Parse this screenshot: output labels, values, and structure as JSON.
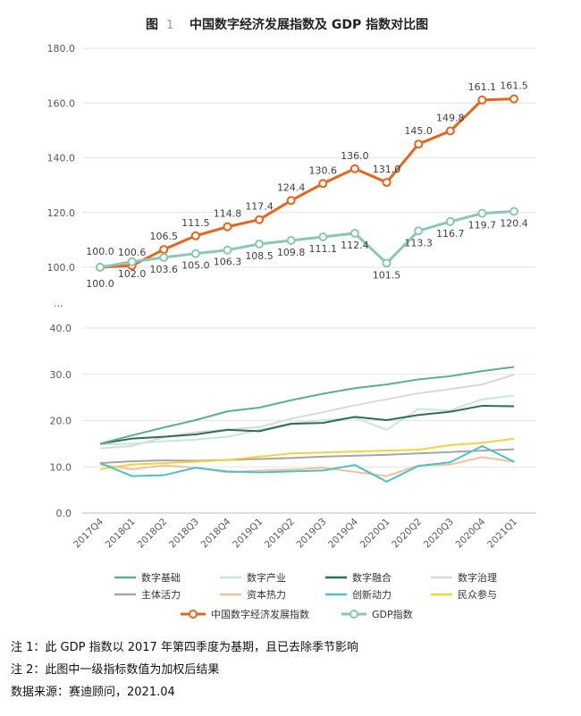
{
  "figure": {
    "number_label": "图",
    "number": "1",
    "title": "中国数字经济发展指数及 GDP 指数对比图"
  },
  "chart_data": [
    {
      "type": "line",
      "categories": [
        "2017Q4",
        "2018Q1",
        "2018Q2",
        "2018Q3",
        "2018Q4",
        "2019Q1",
        "2019Q2",
        "2019Q3",
        "2019Q4",
        "2020Q1",
        "2020Q2",
        "2020Q3",
        "2020Q4",
        "2021Q1"
      ],
      "ylim": [
        100,
        180
      ],
      "yticks": [
        "100.0",
        "120.0",
        "140.0",
        "160.0",
        "180.0"
      ],
      "grid": true,
      "series": [
        {
          "name": "中国数字经济发展指数",
          "color": "#e8641b",
          "values": [
            100.0,
            100.6,
            106.5,
            111.5,
            114.8,
            117.4,
            124.4,
            130.6,
            136.0,
            131.0,
            145.0,
            149.8,
            161.1,
            161.5
          ],
          "labels": [
            "100.0",
            "100.6",
            "106.5",
            "111.5",
            "114.8",
            "117.4",
            "124.4",
            "130.6",
            "136.0",
            "131.0",
            "145.0",
            "149.8",
            "161.1",
            "161.5"
          ]
        },
        {
          "name": "GDP指数",
          "color": "#8ac7b4",
          "values": [
            100.0,
            102.0,
            103.6,
            105.0,
            106.3,
            108.5,
            109.8,
            111.1,
            112.4,
            101.5,
            113.3,
            116.7,
            119.7,
            120.4
          ],
          "labels": [
            "100.0",
            "102.0",
            "103.6",
            "105.0",
            "106.3",
            "108.5",
            "109.8",
            "111.1",
            "112.4",
            "101.5",
            "113.3",
            "116.7",
            "119.7",
            "120.4"
          ]
        }
      ]
    },
    {
      "type": "line",
      "axis_break": "...",
      "categories": [
        "2017Q4",
        "2018Q1",
        "2018Q2",
        "2018Q3",
        "2018Q4",
        "2019Q1",
        "2019Q2",
        "2019Q3",
        "2019Q4",
        "2020Q1",
        "2020Q2",
        "2020Q3",
        "2020Q4",
        "2021Q1"
      ],
      "ylim": [
        0,
        40
      ],
      "yticks": [
        "0.0",
        "10.0",
        "20.0",
        "30.0",
        "40.0"
      ],
      "grid": true,
      "series": [
        {
          "name": "数字基础",
          "color": "#5bb08f",
          "values": [
            15.0,
            16.8,
            18.5,
            20.1,
            22.0,
            22.8,
            24.4,
            25.8,
            27.0,
            27.8,
            28.9,
            29.6,
            30.7,
            31.6
          ]
        },
        {
          "name": "数字产业",
          "color": "#c8e6da",
          "values": [
            14.8,
            15.0,
            15.5,
            15.9,
            16.5,
            18.0,
            19.4,
            20.1,
            20.6,
            18.0,
            22.5,
            22.2,
            24.6,
            25.4
          ]
        },
        {
          "name": "数字融合",
          "color": "#2e6e55",
          "values": [
            15.0,
            16.1,
            16.5,
            17.0,
            18.0,
            17.7,
            19.3,
            19.5,
            20.8,
            20.1,
            21.2,
            21.9,
            23.2,
            23.1
          ]
        },
        {
          "name": "数字治理",
          "color": "#d9d9d9",
          "values": [
            14.0,
            14.5,
            16.4,
            17.5,
            18.1,
            18.6,
            20.4,
            21.8,
            23.3,
            24.6,
            25.9,
            26.8,
            27.8,
            29.9
          ]
        },
        {
          "name": "主体活力",
          "color": "#a6a6a6",
          "values": [
            10.8,
            11.2,
            11.4,
            11.3,
            11.5,
            11.7,
            11.9,
            12.2,
            12.4,
            12.6,
            12.9,
            13.2,
            13.5,
            13.8
          ]
        },
        {
          "name": "资本热力",
          "color": "#f4c09c",
          "values": [
            10.5,
            9.5,
            10.3,
            9.8,
            8.8,
            9.2,
            9.4,
            9.8,
            8.9,
            8.0,
            10.3,
            10.5,
            12.1,
            11.1
          ]
        },
        {
          "name": "创新动力",
          "color": "#4bc3c6",
          "values": [
            10.8,
            8.0,
            8.2,
            9.8,
            9.0,
            8.8,
            9.0,
            9.2,
            10.4,
            6.8,
            10.2,
            11.0,
            14.5,
            11.1
          ]
        },
        {
          "name": "民众参与",
          "color": "#f2d33a",
          "values": [
            9.5,
            10.5,
            10.8,
            11.1,
            11.5,
            12.2,
            12.9,
            13.1,
            13.3,
            13.5,
            13.7,
            14.7,
            15.2,
            16.1
          ]
        }
      ]
    }
  ],
  "legend": {
    "row1": [
      "数字基础",
      "数字产业",
      "数字融合",
      "数字治理"
    ],
    "row2": [
      "主体活力",
      "资本热力",
      "创新动力",
      "民众参与"
    ],
    "row3": [
      "中国数字经济发展指数",
      "GDP指数"
    ]
  },
  "notes": [
    "注 1：此 GDP 指数以 2017 年第四季度为基期，且已去除季节影响",
    "注 2：此图中一级指标数值为加权后结果",
    "数据来源：赛迪顾问，2021.04"
  ]
}
